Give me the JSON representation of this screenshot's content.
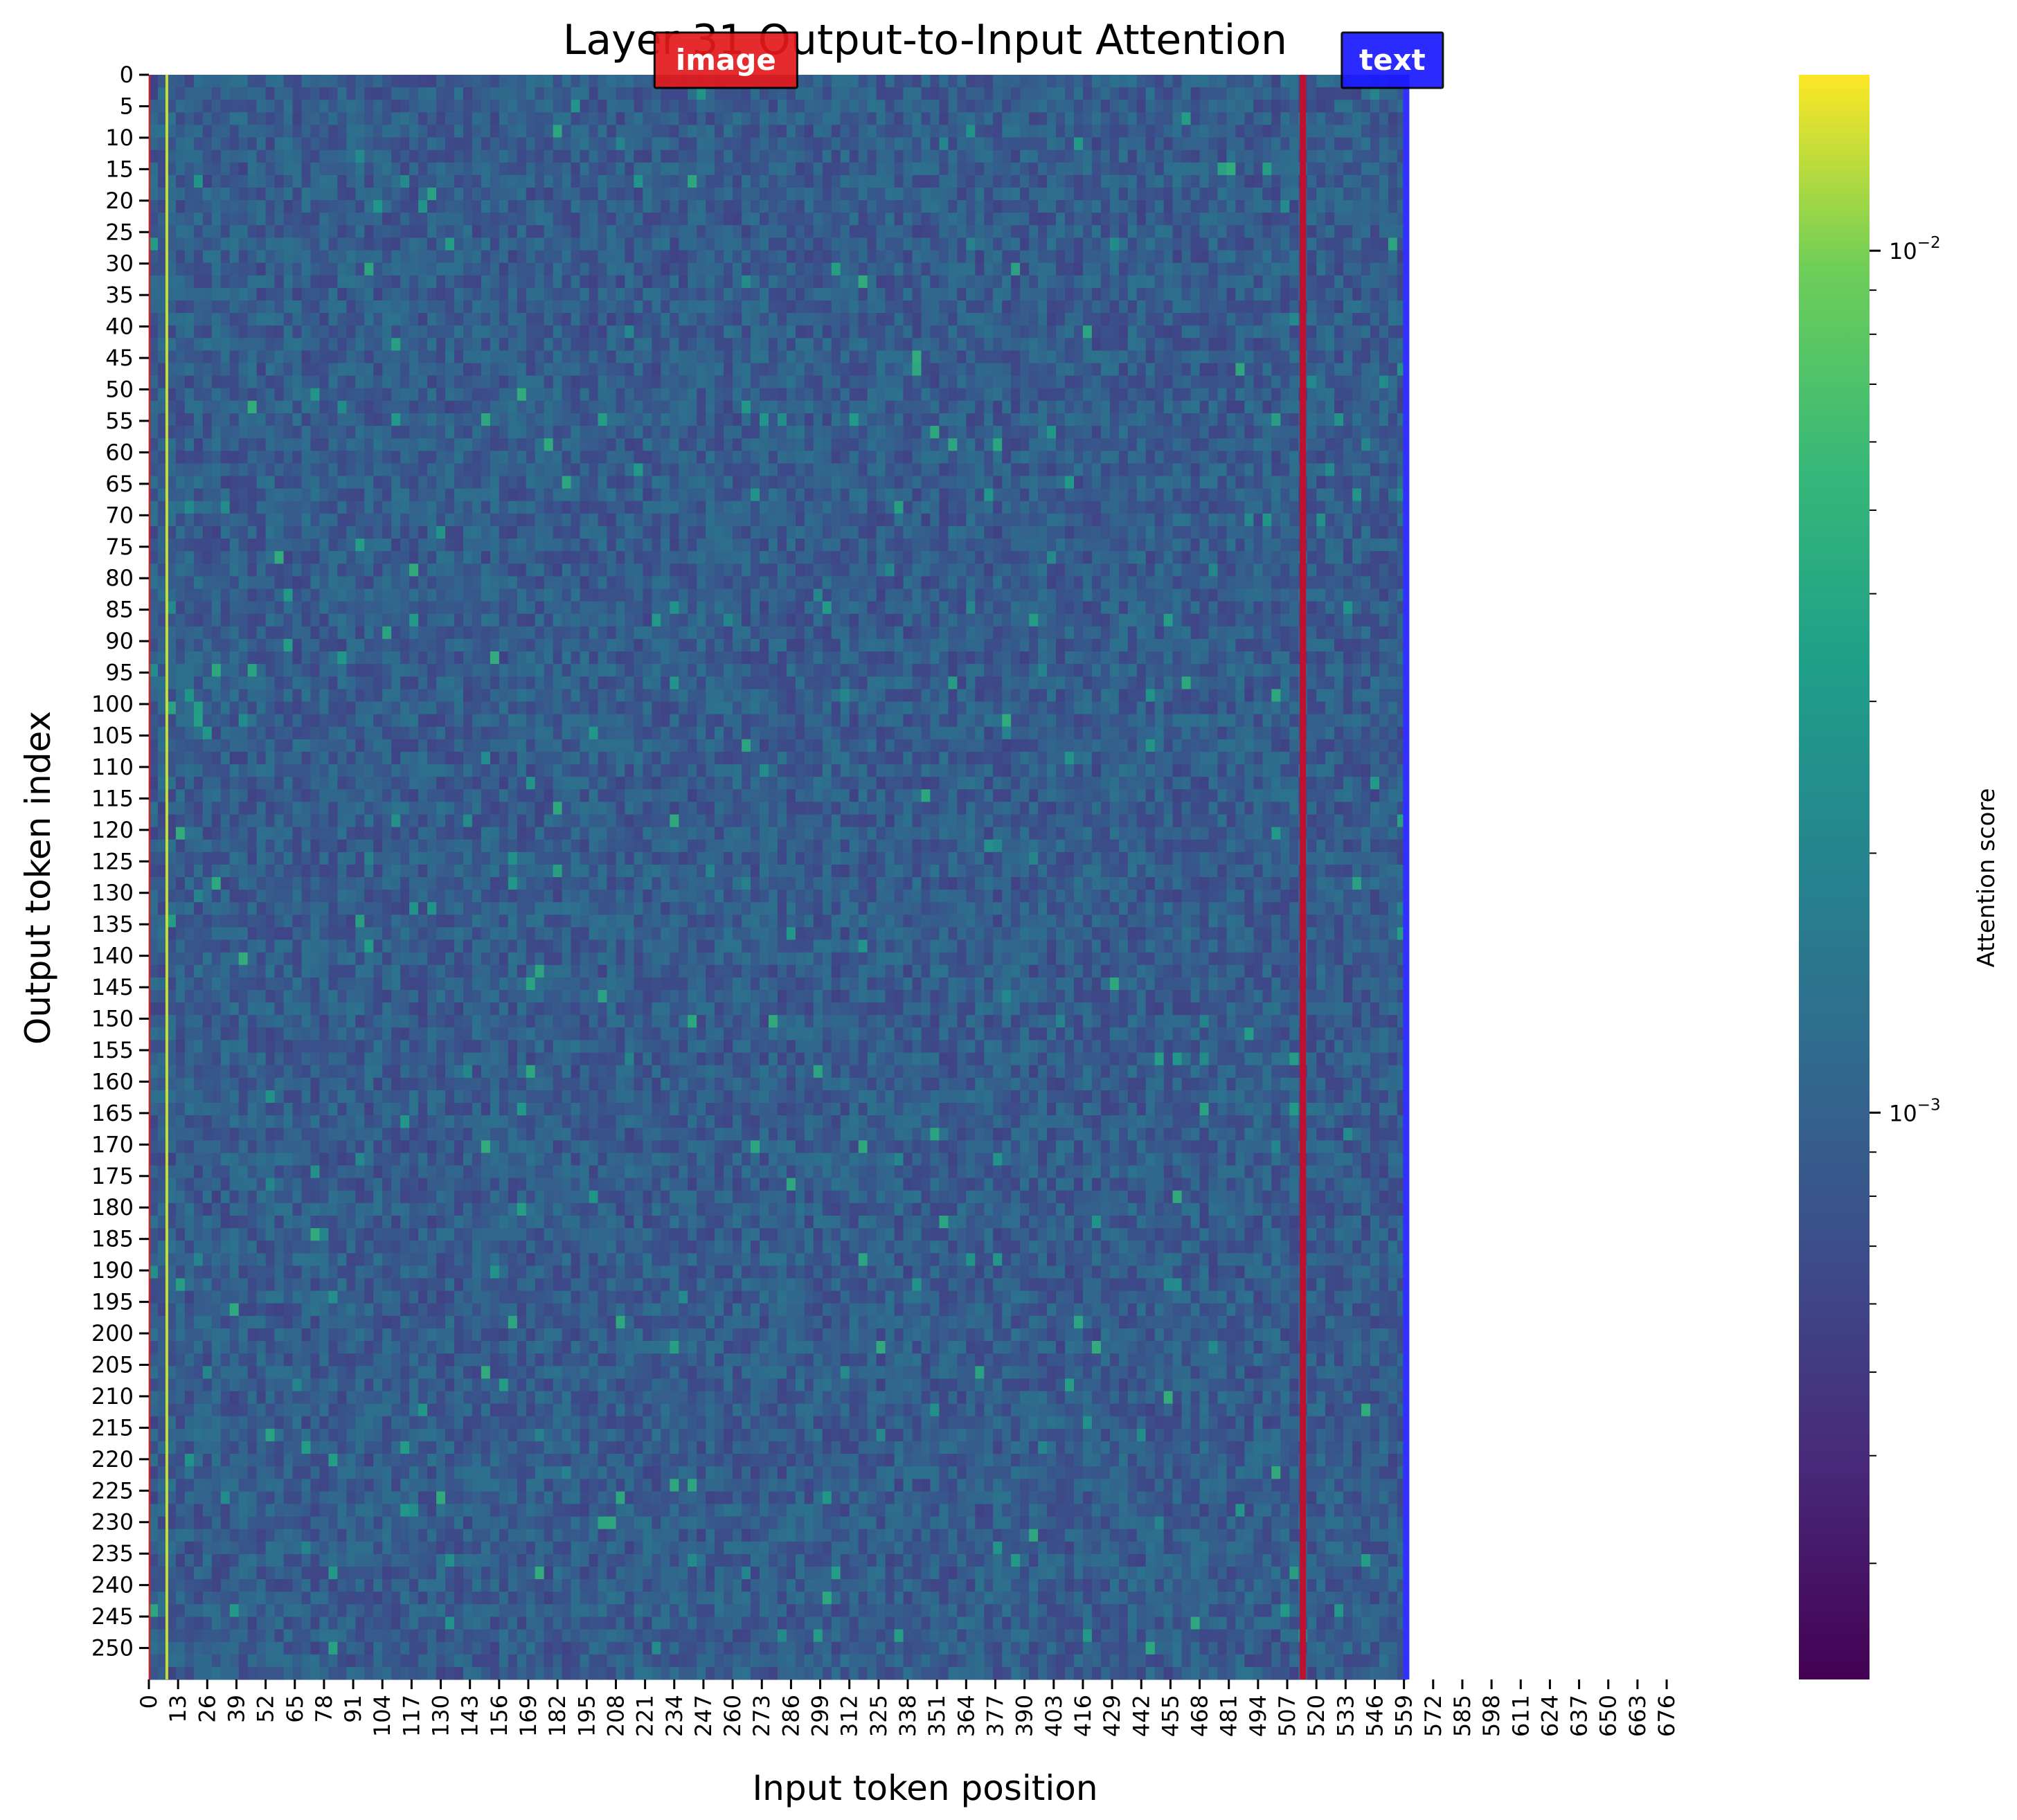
{
  "chart_data": {
    "type": "heatmap",
    "title": "Layer 31 Output-to-Input Attention",
    "xlabel": "Input token position",
    "ylabel": "Output token index",
    "x_ticks": [
      "0",
      "13",
      "26",
      "39",
      "52",
      "65",
      "78",
      "91",
      "104",
      "117",
      "130",
      "143",
      "156",
      "169",
      "182",
      "195",
      "208",
      "221",
      "234",
      "247",
      "260",
      "273",
      "286",
      "299",
      "312",
      "325",
      "338",
      "351",
      "364",
      "377",
      "390",
      "403",
      "416",
      "429",
      "442",
      "455",
      "468",
      "481",
      "494",
      "507",
      "520",
      "533",
      "546",
      "559",
      "572",
      "585",
      "598",
      "611",
      "624",
      "637",
      "650",
      "663",
      "676"
    ],
    "y_ticks": [
      "0",
      "5",
      "10",
      "15",
      "20",
      "25",
      "30",
      "35",
      "40",
      "45",
      "50",
      "55",
      "60",
      "65",
      "70",
      "75",
      "80",
      "85",
      "90",
      "95",
      "100",
      "105",
      "110",
      "115",
      "120",
      "125",
      "130",
      "135",
      "140",
      "145",
      "150",
      "155",
      "160",
      "165",
      "170",
      "175",
      "180",
      "185",
      "190",
      "195",
      "200",
      "205",
      "210",
      "215",
      "220",
      "225",
      "230",
      "235",
      "240",
      "245",
      "250"
    ],
    "x_range": [
      0,
      680
    ],
    "y_range": [
      0,
      255
    ],
    "data_x_extent": [
      0,
      560
    ],
    "colorbar": {
      "label": "Attention score",
      "scale": "log",
      "colormap": "viridis",
      "range": [
        0.00022,
        0.016
      ],
      "major_ticks": [
        {
          "value": 0.01,
          "label_base": "10",
          "label_exp": "−2"
        },
        {
          "value": 0.001,
          "label_base": "10",
          "label_exp": "−3"
        }
      ],
      "minor_ticks": [
        0.0003,
        0.0004,
        0.0005,
        0.0006,
        0.0007,
        0.0008,
        0.0009,
        0.002,
        0.003,
        0.004,
        0.005,
        0.006,
        0.007,
        0.008,
        0.009
      ]
    },
    "typical_value": 0.0009,
    "high_attention_columns": [
      {
        "x": 8,
        "value": 0.013
      }
    ],
    "regions": [
      {
        "name": "image",
        "start": 0,
        "end": 514,
        "color": "#e31a1c"
      },
      {
        "name": "text",
        "start": 514,
        "end": 560,
        "color": "#1a1aff"
      }
    ],
    "boundaries": [
      {
        "x": 514,
        "color": "#c01030"
      },
      {
        "x": 560,
        "color": "#3030ff"
      }
    ]
  }
}
